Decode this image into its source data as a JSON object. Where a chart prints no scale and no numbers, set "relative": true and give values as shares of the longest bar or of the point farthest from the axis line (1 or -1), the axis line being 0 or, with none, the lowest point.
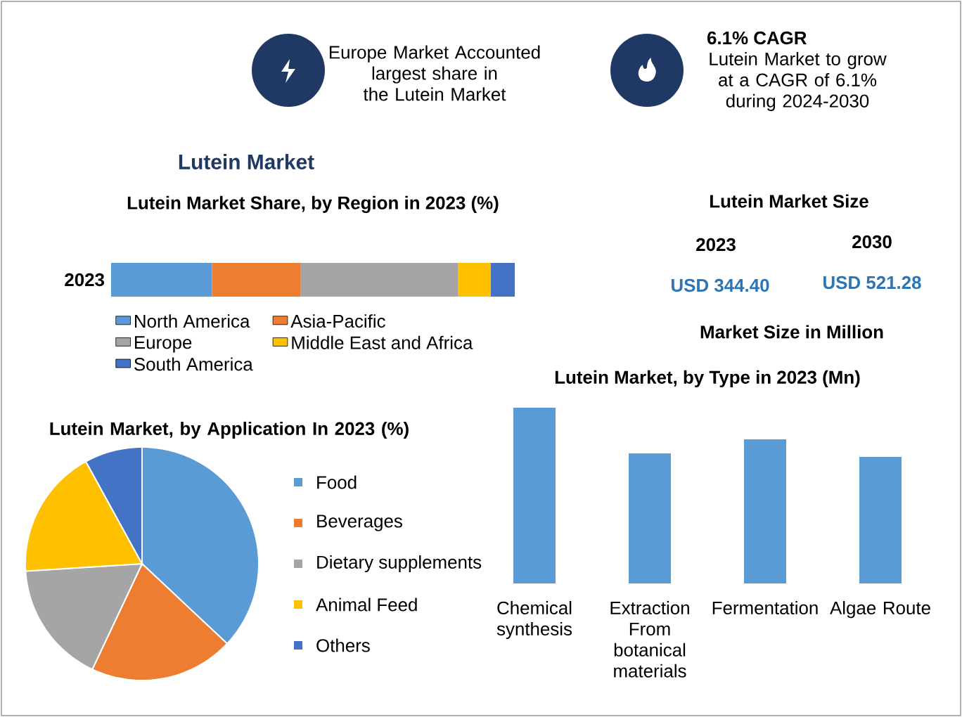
{
  "chart_data": [
    {
      "type": "other",
      "title": "Lutein Market",
      "annotations": [
        "Europe Market Accounted largest share in the Lutein Market",
        "6.1% CAGR",
        "Lutein Market to grow at a CAGR of 6.1% during 2024-2030"
      ]
    },
    {
      "type": "bar",
      "title": "Lutein Market Share, by Region in 2023 (%)",
      "orientation": "horizontal",
      "stacked": true,
      "relative": true,
      "legend": "bottom",
      "categories": [
        "2023"
      ],
      "series": [
        {
          "name": "North America",
          "color": "#5b9bd5",
          "values": [
            0.25
          ]
        },
        {
          "name": "Asia-Pacific",
          "color": "#ed7d31",
          "values": [
            0.22
          ]
        },
        {
          "name": "Europe",
          "color": "#a5a5a5",
          "values": [
            0.39
          ]
        },
        {
          "name": "Middle East and Africa",
          "color": "#ffc000",
          "values": [
            0.08
          ]
        },
        {
          "name": "South America",
          "color": "#4472c4",
          "values": [
            0.06
          ]
        }
      ]
    },
    {
      "type": "other",
      "title": "Lutein Market Size",
      "annotations": [
        "2023",
        "2030",
        "USD 344.40",
        "USD 521.28",
        "Market Size in Million"
      ]
    },
    {
      "type": "pie",
      "title": "Lutein Market, by Application In 2023 (%)",
      "legend": "right",
      "categories": [
        "Food",
        "Beverages",
        "Dietary supplements",
        "Animal Feed",
        "Others"
      ],
      "values": [
        37,
        20,
        17,
        18,
        8
      ],
      "colors": [
        "#5b9bd5",
        "#ed7d31",
        "#a5a5a5",
        "#ffc000",
        "#4472c4"
      ]
    },
    {
      "type": "bar",
      "title": "Lutein Market, by Type in 2023 (Mn)",
      "relative": true,
      "categories": [
        "Chemical synthesis",
        "Extraction From botanical materials",
        "Fermentation",
        "Algae Route"
      ],
      "values": [
        1,
        0.74,
        0.82,
        0.72
      ],
      "color": "#5b9bd5"
    }
  ]
}
